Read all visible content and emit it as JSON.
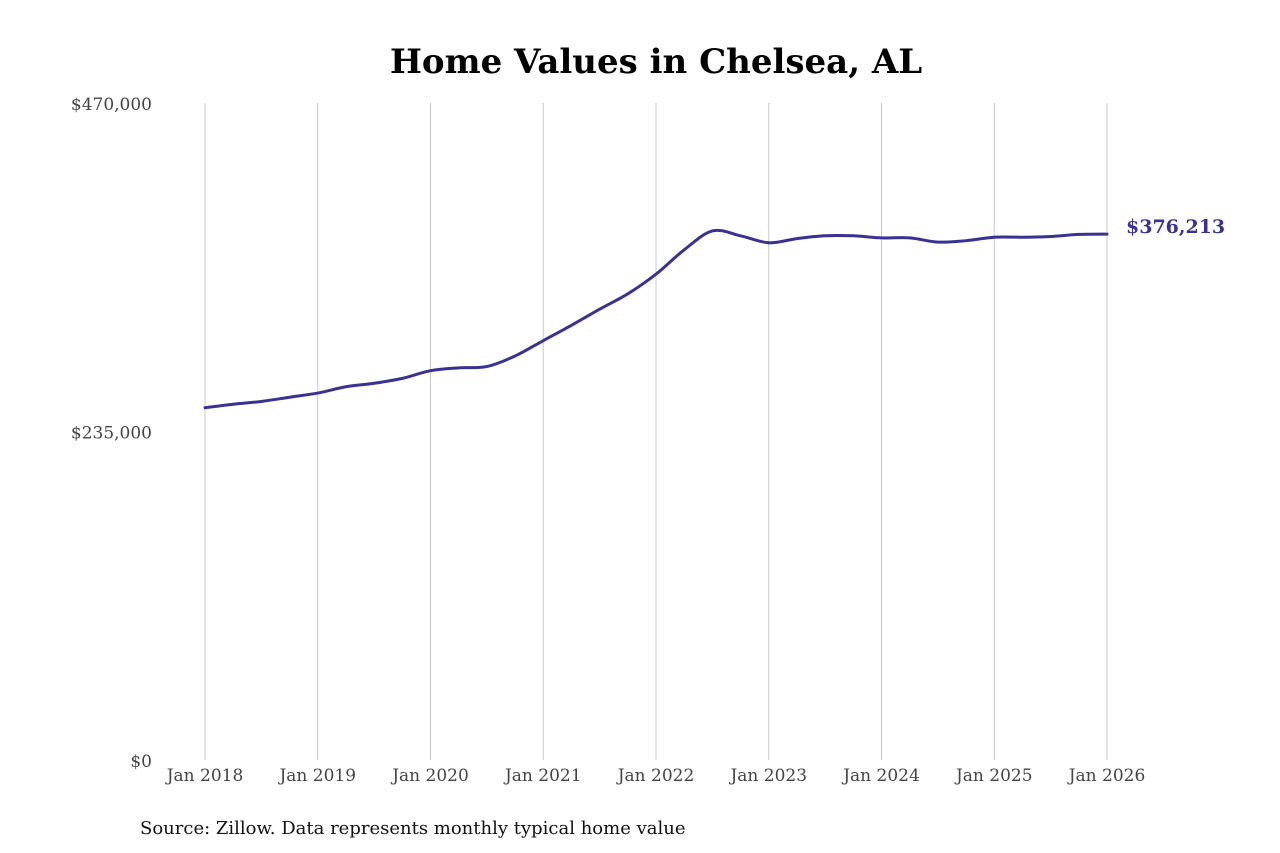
{
  "chart_data": {
    "type": "line",
    "title": "Home Values in Chelsea, AL",
    "xlabel": "",
    "ylabel": "",
    "ylim": [
      0,
      470000
    ],
    "y_ticks": [
      {
        "value": 0,
        "label": "$0"
      },
      {
        "value": 235000,
        "label": "$235,000"
      },
      {
        "value": 470000,
        "label": "$470,000"
      }
    ],
    "x_ticks": [
      {
        "value": "2018-01",
        "label": "Jan 2018"
      },
      {
        "value": "2019-01",
        "label": "Jan 2019"
      },
      {
        "value": "2020-01",
        "label": "Jan 2020"
      },
      {
        "value": "2021-01",
        "label": "Jan 2021"
      },
      {
        "value": "2022-01",
        "label": "Jan 2022"
      },
      {
        "value": "2023-01",
        "label": "Jan 2023"
      },
      {
        "value": "2024-01",
        "label": "Jan 2024"
      },
      {
        "value": "2025-01",
        "label": "Jan 2025"
      },
      {
        "value": "2026-01",
        "label": "Jan 2026"
      }
    ],
    "xlim": [
      "2018-01",
      "2026-01"
    ],
    "grid": {
      "vertical": true,
      "horizontal": false
    },
    "legend": "none",
    "line_color": "#3a3194",
    "series": [
      {
        "points": [
          {
            "x": "2018-01",
            "y": 252000
          },
          {
            "x": "2018-04",
            "y": 254500
          },
          {
            "x": "2018-07",
            "y": 256500
          },
          {
            "x": "2018-10",
            "y": 259500
          },
          {
            "x": "2019-01",
            "y": 262500
          },
          {
            "x": "2019-04",
            "y": 267000
          },
          {
            "x": "2019-07",
            "y": 269500
          },
          {
            "x": "2019-10",
            "y": 273000
          },
          {
            "x": "2020-01",
            "y": 278500
          },
          {
            "x": "2020-04",
            "y": 280500
          },
          {
            "x": "2020-07",
            "y": 281500
          },
          {
            "x": "2020-10",
            "y": 289000
          },
          {
            "x": "2021-01",
            "y": 300000
          },
          {
            "x": "2021-04",
            "y": 311000
          },
          {
            "x": "2021-07",
            "y": 322500
          },
          {
            "x": "2021-10",
            "y": 333500
          },
          {
            "x": "2022-01",
            "y": 347500
          },
          {
            "x": "2022-04",
            "y": 365000
          },
          {
            "x": "2022-07",
            "y": 378500
          },
          {
            "x": "2022-10",
            "y": 375000
          },
          {
            "x": "2023-01",
            "y": 370000
          },
          {
            "x": "2023-04",
            "y": 373000
          },
          {
            "x": "2023-07",
            "y": 375000
          },
          {
            "x": "2023-10",
            "y": 375000
          },
          {
            "x": "2024-01",
            "y": 373500
          },
          {
            "x": "2024-04",
            "y": 373500
          },
          {
            "x": "2024-07",
            "y": 370500
          },
          {
            "x": "2024-10",
            "y": 371500
          },
          {
            "x": "2025-01",
            "y": 374000
          },
          {
            "x": "2025-04",
            "y": 374000
          },
          {
            "x": "2025-07",
            "y": 374500
          },
          {
            "x": "2025-10",
            "y": 376000
          },
          {
            "x": "2026-01",
            "y": 376213
          }
        ]
      }
    ],
    "end_label": "$376,213"
  },
  "source_note": "Source: Zillow. Data represents monthly typical home value"
}
